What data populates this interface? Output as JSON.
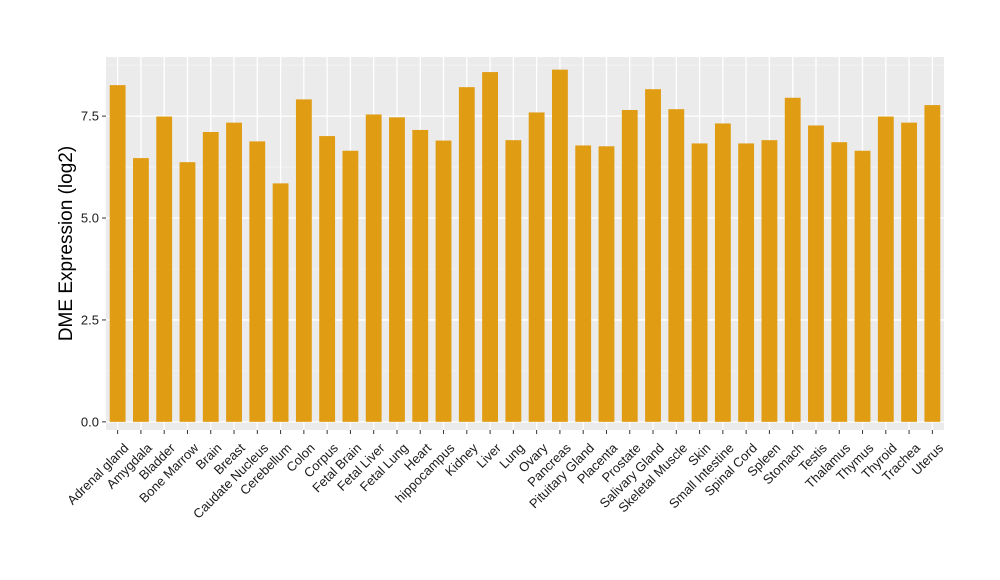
{
  "chart_data": {
    "type": "bar",
    "ylabel": "DME Expression (log2)",
    "xlabel": "",
    "ylim": [
      -0.2,
      8.95
    ],
    "yticks": [
      0.0,
      2.5,
      5.0,
      7.5
    ],
    "ytick_labels": [
      "0.0",
      "2.5",
      "5.0",
      "7.5"
    ],
    "grid": true,
    "categories": [
      "Adrenal gland",
      "Amygdala",
      "Bladder",
      "Bone Marrow",
      "Brain",
      "Breast",
      "Caudate Nucleus",
      "Cerebellum",
      "Colon",
      "Corpus",
      "Fetal Brain",
      "Fetal Liver",
      "Fetal Lung",
      "Heart",
      "hippocampus",
      "Kidney",
      "Liver",
      "Lung",
      "Ovary",
      "Pancreas",
      "Pituitary Gland",
      "Placenta",
      "Prostate",
      "Salivary Gland",
      "Skeletal Muscle",
      "Skin",
      "Small Intestine",
      "Spinal Cord",
      "Spleen",
      "Stomach",
      "Testis",
      "Thalamus",
      "Thymus",
      "Thyroid",
      "Trachea",
      "Uterus"
    ],
    "values": [
      8.26,
      6.47,
      7.49,
      6.37,
      7.11,
      7.34,
      6.88,
      5.85,
      7.91,
      7.01,
      6.65,
      7.54,
      7.47,
      7.16,
      6.9,
      8.21,
      8.58,
      6.91,
      7.59,
      8.64,
      6.78,
      6.76,
      7.65,
      8.16,
      7.67,
      6.83,
      7.32,
      6.83,
      6.91,
      7.95,
      7.27,
      6.86,
      6.65,
      7.49,
      7.34,
      7.77
    ]
  },
  "colors": {
    "bar": "#E09C12",
    "panel": "#EBEBEB",
    "grid_major": "#FFFFFF",
    "grid_minor": "#F4F4F4",
    "tick": "#333333"
  }
}
